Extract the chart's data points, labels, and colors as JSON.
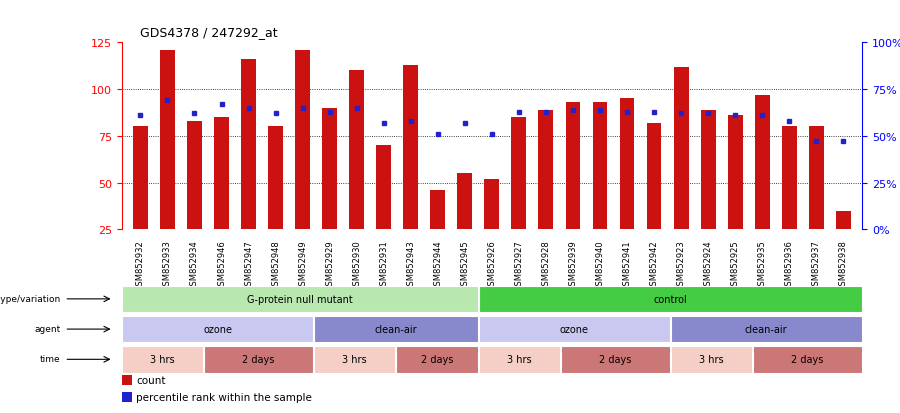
{
  "title": "GDS4378 / 247292_at",
  "samples": [
    "GSM852932",
    "GSM852933",
    "GSM852934",
    "GSM852946",
    "GSM852947",
    "GSM852948",
    "GSM852949",
    "GSM852929",
    "GSM852930",
    "GSM852931",
    "GSM852943",
    "GSM852944",
    "GSM852945",
    "GSM852926",
    "GSM852927",
    "GSM852928",
    "GSM852939",
    "GSM852940",
    "GSM852941",
    "GSM852942",
    "GSM852923",
    "GSM852924",
    "GSM852925",
    "GSM852935",
    "GSM852936",
    "GSM852937",
    "GSM852938"
  ],
  "counts": [
    80,
    121,
    83,
    85,
    116,
    80,
    121,
    90,
    110,
    70,
    113,
    46,
    55,
    52,
    85,
    89,
    93,
    93,
    95,
    82,
    112,
    89,
    86,
    97,
    80,
    80,
    35
  ],
  "percentile_ranks": [
    61,
    69,
    62,
    67,
    65,
    62,
    65,
    63,
    65,
    57,
    58,
    51,
    57,
    51,
    63,
    63,
    64,
    64,
    63,
    63,
    62,
    62,
    61,
    61,
    58,
    47,
    47
  ],
  "ylim_left": [
    25,
    125
  ],
  "ylim_right": [
    0,
    100
  ],
  "yticks_left": [
    25,
    50,
    75,
    100,
    125
  ],
  "yticks_right": [
    0,
    25,
    50,
    75,
    100
  ],
  "ytick_right_labels": [
    "0%",
    "25%",
    "50%",
    "75%",
    "100%"
  ],
  "grid_values": [
    50,
    75,
    100
  ],
  "bar_color": "#cc1111",
  "dot_color": "#2222cc",
  "annotation_rows": [
    {
      "label": "genotype/variation",
      "segments": [
        {
          "text": "G-protein null mutant",
          "start": 0,
          "end": 13,
          "color": "#b8e8b0"
        },
        {
          "text": "control",
          "start": 13,
          "end": 27,
          "color": "#44cc44"
        }
      ]
    },
    {
      "label": "agent",
      "segments": [
        {
          "text": "ozone",
          "start": 0,
          "end": 7,
          "color": "#c8c8f0"
        },
        {
          "text": "clean-air",
          "start": 7,
          "end": 13,
          "color": "#8888cc"
        },
        {
          "text": "ozone",
          "start": 13,
          "end": 20,
          "color": "#c8c8f0"
        },
        {
          "text": "clean-air",
          "start": 20,
          "end": 27,
          "color": "#8888cc"
        }
      ]
    },
    {
      "label": "time",
      "segments": [
        {
          "text": "3 hrs",
          "start": 0,
          "end": 3,
          "color": "#f5cfc5"
        },
        {
          "text": "2 days",
          "start": 3,
          "end": 7,
          "color": "#cc7777"
        },
        {
          "text": "3 hrs",
          "start": 7,
          "end": 10,
          "color": "#f5cfc5"
        },
        {
          "text": "2 days",
          "start": 10,
          "end": 13,
          "color": "#cc7777"
        },
        {
          "text": "3 hrs",
          "start": 13,
          "end": 16,
          "color": "#f5cfc5"
        },
        {
          "text": "2 days",
          "start": 16,
          "end": 20,
          "color": "#cc7777"
        },
        {
          "text": "3 hrs",
          "start": 20,
          "end": 23,
          "color": "#f5cfc5"
        },
        {
          "text": "2 days",
          "start": 23,
          "end": 27,
          "color": "#cc7777"
        }
      ]
    }
  ],
  "legend": [
    {
      "color": "#cc1111",
      "label": "count"
    },
    {
      "color": "#2222cc",
      "label": "percentile rank within the sample"
    }
  ]
}
